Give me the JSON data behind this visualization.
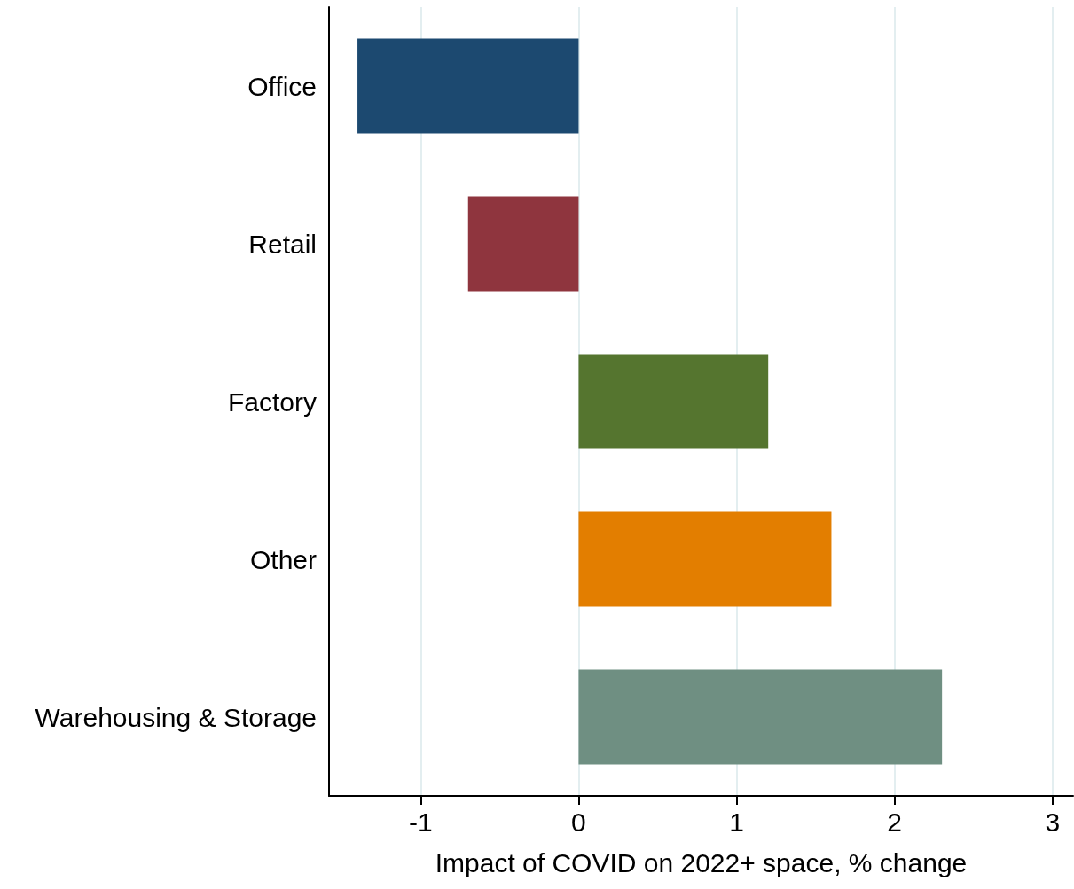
{
  "chart_data": {
    "type": "bar",
    "orientation": "horizontal",
    "xlabel": "Impact of COVID on 2022+ space, % change",
    "categories": [
      "Office",
      "Retail",
      "Factory",
      "Other",
      "Warehousing & Storage"
    ],
    "values": [
      -1.4,
      -0.7,
      1.2,
      1.6,
      2.3
    ],
    "colors": [
      "#1c4970",
      "#8f353e",
      "#55752f",
      "#e37e00",
      "#6f8f82"
    ],
    "xlim": [
      -1.58,
      3.13
    ],
    "xticks": [
      -1,
      0,
      1,
      2,
      3
    ],
    "grid": "x"
  }
}
